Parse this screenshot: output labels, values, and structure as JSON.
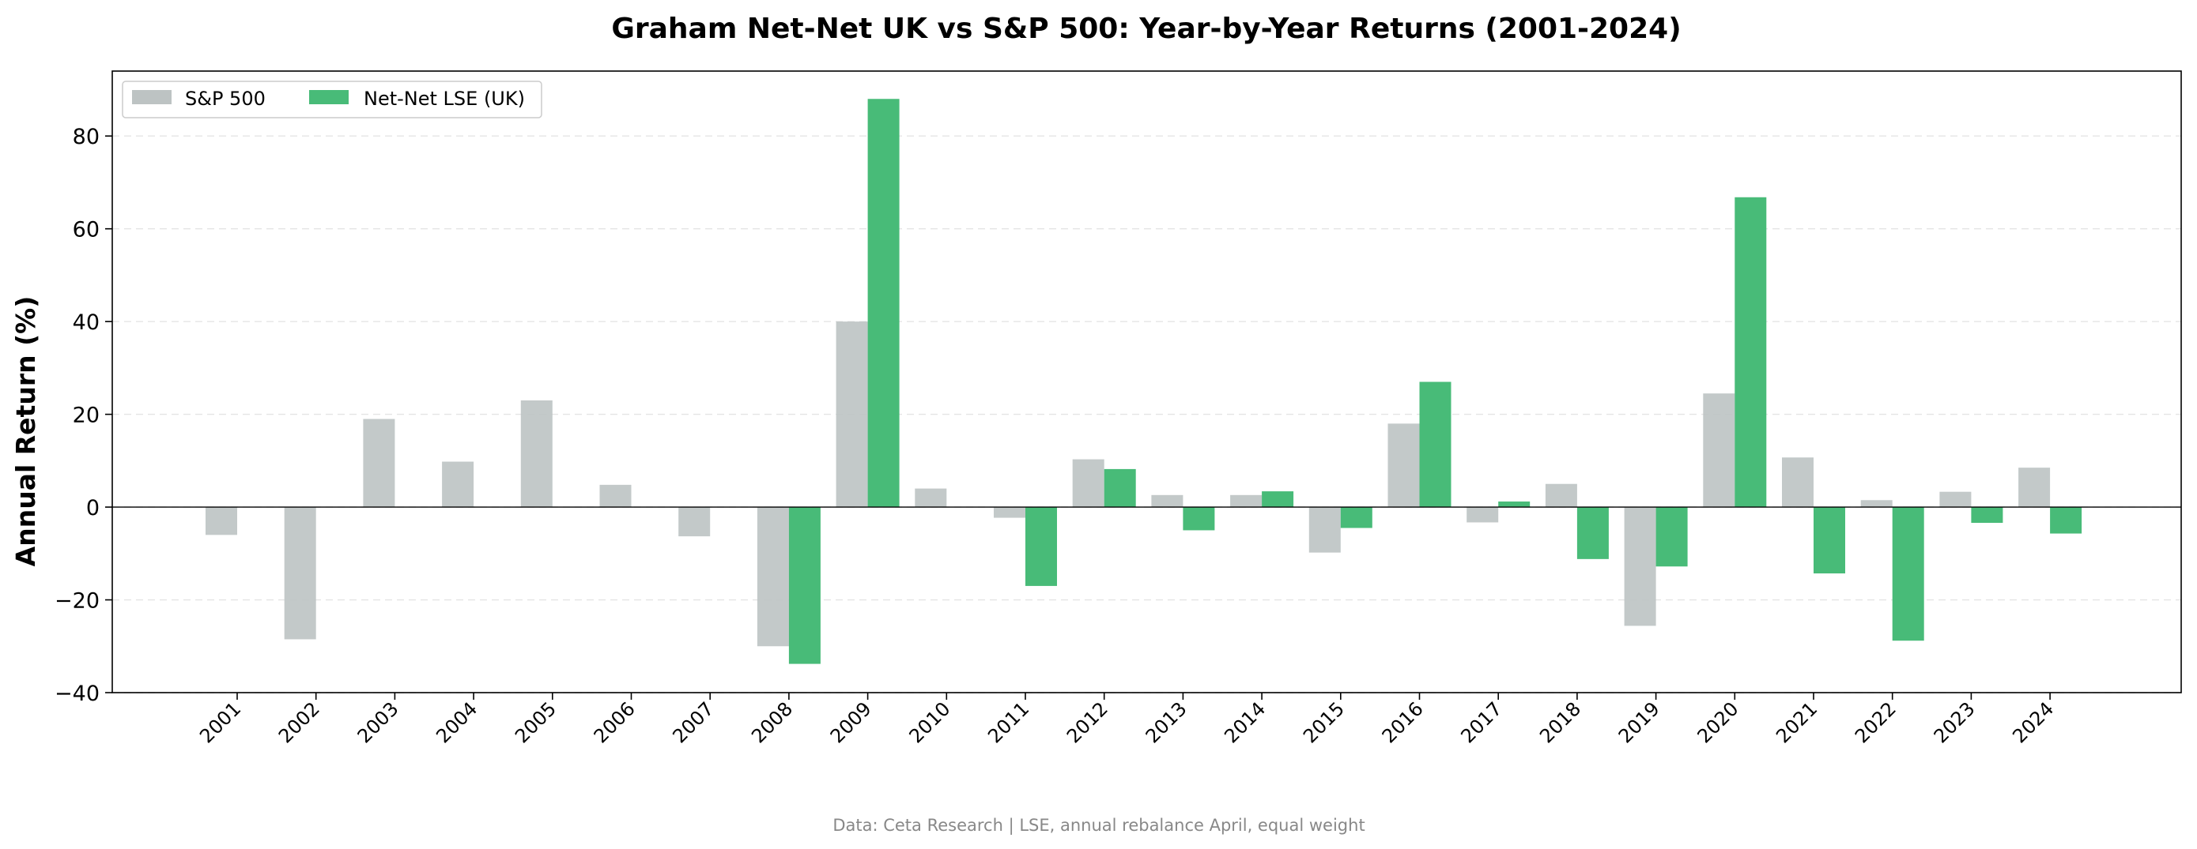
{
  "chart_data": {
    "type": "bar",
    "title": "Graham Net-Net UK vs S&P 500: Year-by-Year Returns (2001-2024)",
    "xlabel": "",
    "ylabel": "Annual Return (%)",
    "ylim": [
      -40,
      94
    ],
    "yticks": [
      -40,
      -20,
      0,
      20,
      40,
      60,
      80
    ],
    "grid": "horizontal dashed",
    "legend_position": "top-left",
    "categories": [
      "2001",
      "2002",
      "2003",
      "2004",
      "2005",
      "2006",
      "2007",
      "2008",
      "2009",
      "2010",
      "2011",
      "2012",
      "2013",
      "2014",
      "2015",
      "2016",
      "2017",
      "2018",
      "2019",
      "2020",
      "2021",
      "2022",
      "2023",
      "2024"
    ],
    "series": [
      {
        "name": "S&P 500",
        "color": "#BDC3C3",
        "values": [
          -6.0,
          -28.5,
          19.0,
          9.8,
          23.0,
          4.8,
          -6.3,
          -30.0,
          40.0,
          4.0,
          -2.3,
          10.3,
          2.6,
          2.6,
          -9.8,
          18.0,
          -3.3,
          5.0,
          -25.6,
          24.5,
          10.7,
          1.5,
          3.3,
          8.5
        ]
      },
      {
        "name": "Net-Net LSE (UK)",
        "color": "#48BB78",
        "values": [
          null,
          null,
          null,
          null,
          null,
          null,
          null,
          -33.8,
          88.0,
          null,
          -17.0,
          8.2,
          -5.0,
          3.4,
          -4.5,
          27.0,
          1.2,
          -11.2,
          -12.8,
          66.8,
          -14.3,
          -28.8,
          -3.4,
          -5.7
        ]
      }
    ],
    "source_note": "Data: Ceta Research | LSE, annual rebalance April, equal weight"
  }
}
